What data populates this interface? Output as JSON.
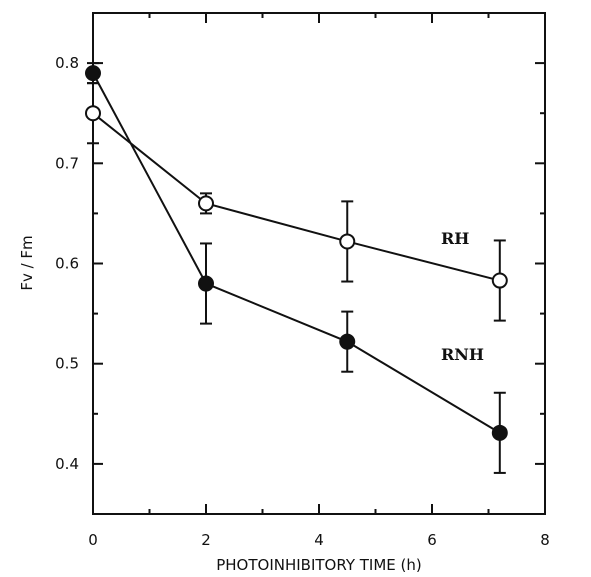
{
  "chart_data": {
    "type": "line",
    "title": "",
    "xlabel": "PHOTOINHIBITORY TIME (h)",
    "ylabel": "Fv / Fm",
    "xlim": [
      0,
      8
    ],
    "ylim": [
      0.35,
      0.85
    ],
    "x_ticks": [
      0,
      2,
      4,
      6,
      8
    ],
    "x_tick_labels": [
      "0",
      "2",
      "4",
      "6",
      "8"
    ],
    "y_ticks": [
      0.4,
      0.5,
      0.6,
      0.7,
      0.8
    ],
    "y_tick_labels": [
      "0.4",
      "0.5",
      "0.6",
      "0.7",
      "0.8"
    ],
    "grid": false,
    "legend": "none (series labelled directly on plot)",
    "series": [
      {
        "name": "RH",
        "marker": "open-circle",
        "x": [
          0,
          2,
          4.5,
          7.2
        ],
        "y": [
          0.75,
          0.66,
          0.622,
          0.583
        ],
        "error": [
          0.03,
          0.01,
          0.04,
          0.04
        ]
      },
      {
        "name": "RNH",
        "marker": "filled-circle",
        "x": [
          0,
          2,
          4.5,
          7.2
        ],
        "y": [
          0.79,
          0.58,
          0.522,
          0.431
        ],
        "error": [
          0.01,
          0.04,
          0.03,
          0.04
        ]
      }
    ]
  }
}
